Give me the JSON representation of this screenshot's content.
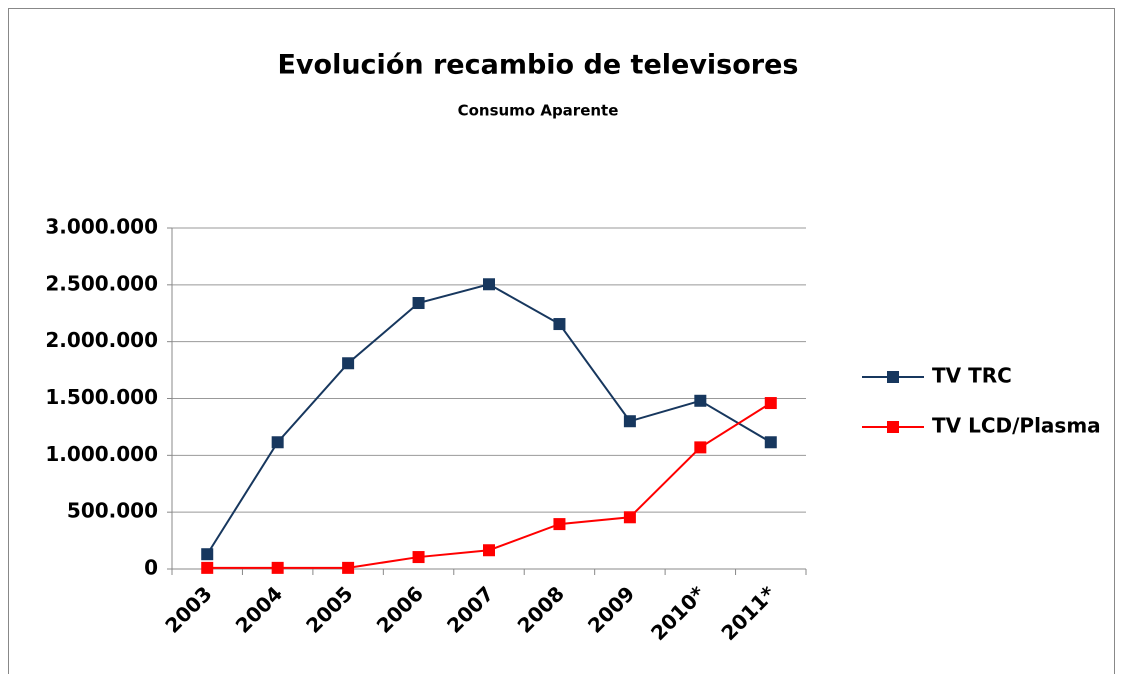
{
  "chart_data": {
    "type": "line",
    "title": "Evolución recambio de televisores",
    "subtitle": "Consumo Aparente",
    "categories": [
      "2003",
      "2004",
      "2005",
      "2006",
      "2007",
      "2008",
      "2009",
      "2010*",
      "2011*"
    ],
    "series": [
      {
        "name": "TV TRC",
        "color": "#17375e",
        "values": [
          130000,
          1115000,
          1810000,
          2340000,
          2505000,
          2155000,
          1300000,
          1480000,
          1115000
        ]
      },
      {
        "name": "TV LCD/Plasma",
        "color": "#ff0000",
        "values": [
          10000,
          10000,
          10000,
          105000,
          165000,
          395000,
          455000,
          1070000,
          1460000
        ]
      }
    ],
    "ylim": [
      0,
      3000000
    ],
    "yticks": [
      {
        "value": 0,
        "label": "0"
      },
      {
        "value": 500000,
        "label": "500.000"
      },
      {
        "value": 1000000,
        "label": "1.000.000"
      },
      {
        "value": 1500000,
        "label": "1.500.000"
      },
      {
        "value": 2000000,
        "label": "2.000.000"
      },
      {
        "value": 2500000,
        "label": "2.500.000"
      },
      {
        "value": 3000000,
        "label": "3.000.000"
      }
    ],
    "grid": true,
    "legend": "right"
  }
}
